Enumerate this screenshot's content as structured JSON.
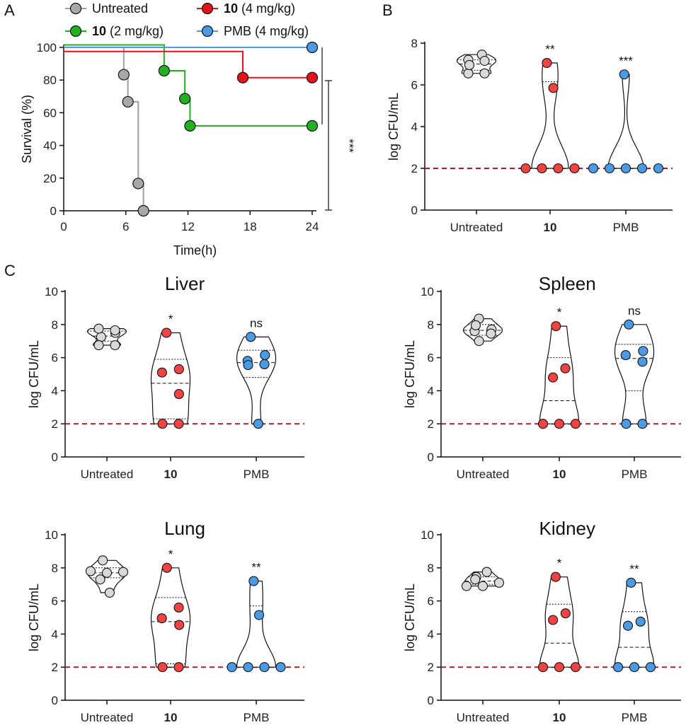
{
  "colors": {
    "untreated": "#a0a0a0",
    "untreated_fill": "#d9d9d9",
    "c10_2": "#22b11e",
    "c10_4": "#e1141b",
    "c10_fill": "#ee4444",
    "pmb": "#4a9be3",
    "pmb_fill": "#4a9be3",
    "lod": "#b01c22"
  },
  "chart_data": [
    {
      "panel": "A",
      "type": "line",
      "subtype": "kaplan-meier",
      "title": "",
      "xlabel": "Time(h)",
      "ylabel": "Survival (%)",
      "xlim": [
        0,
        24
      ],
      "ylim": [
        0,
        100
      ],
      "xticks": [
        0,
        6,
        12,
        18,
        24
      ],
      "yticks": [
        0,
        20,
        40,
        60,
        80,
        100
      ],
      "legend": [
        {
          "key": "untreated",
          "bold": "",
          "text": "Untreated"
        },
        {
          "key": "c10_4",
          "bold": "10",
          "text": " (4 mg/kg)"
        },
        {
          "key": "c10_2",
          "bold": "10",
          "text": " (2 mg/kg)"
        },
        {
          "key": "pmb",
          "bold": "",
          "text": "PMB (4 mg/kg)"
        }
      ],
      "series": [
        {
          "name": "Untreated",
          "key": "untreated",
          "steps": [
            [
              0,
              100
            ],
            [
              5.8,
              100
            ],
            [
              5.8,
              83.3
            ],
            [
              6.2,
              83.3
            ],
            [
              6.2,
              66.7
            ],
            [
              7.2,
              66.7
            ],
            [
              7.2,
              16.7
            ],
            [
              7.7,
              16.7
            ],
            [
              7.7,
              0
            ]
          ],
          "markers": [
            [
              5.8,
              83.3
            ],
            [
              6.2,
              66.7
            ],
            [
              7.2,
              16.7
            ],
            [
              7.7,
              0
            ]
          ]
        },
        {
          "name": "10 (2 mg/kg)",
          "key": "c10_2",
          "steps": [
            [
              0,
              101.5
            ],
            [
              9.7,
              101.5
            ],
            [
              9.7,
              85.7
            ],
            [
              11.7,
              85.7
            ],
            [
              11.7,
              68.6
            ],
            [
              12.2,
              68.6
            ],
            [
              12.2,
              52
            ],
            [
              24,
              52
            ]
          ],
          "markers": [
            [
              9.7,
              85.7
            ],
            [
              11.7,
              68.6
            ],
            [
              12.2,
              52
            ],
            [
              24,
              52
            ]
          ]
        },
        {
          "name": "10 (4 mg/kg)",
          "key": "c10_4",
          "steps": [
            [
              0,
              97.5
            ],
            [
              17.3,
              97.5
            ],
            [
              17.3,
              81.5
            ],
            [
              24,
              81.5
            ]
          ],
          "markers": [
            [
              17.3,
              81.5
            ],
            [
              24,
              81.5
            ]
          ]
        },
        {
          "name": "PMB (4 mg/kg)",
          "key": "pmb",
          "steps": [
            [
              0,
              100
            ],
            [
              24,
              100
            ]
          ],
          "markers": [
            [
              24,
              100
            ]
          ]
        }
      ],
      "significance": "***"
    },
    {
      "panel": "B",
      "type": "scatter",
      "subtype": "violin",
      "title": "",
      "xlabel": "",
      "ylabel": "log CFU/mL",
      "ylim": [
        0,
        8
      ],
      "yticks": [
        0,
        2,
        4,
        6,
        8
      ],
      "lod": 2,
      "groups": [
        {
          "label": "Untreated",
          "bold": false,
          "key": "untreated",
          "sig": "",
          "points": [
            7.2,
            7.45,
            6.55,
            6.55,
            6.95,
            7.15
          ],
          "min": 6.55,
          "max": 7.45,
          "median": 7.0,
          "q1": 6.7,
          "q3": 7.2
        },
        {
          "label": "10",
          "bold": true,
          "key": "c10",
          "sig": "**",
          "points": [
            7.05,
            5.85,
            2,
            2,
            2,
            2
          ],
          "min": 2,
          "max": 7.05,
          "median": 2,
          "q1": 2,
          "q3": 6.15
        },
        {
          "label": "PMB",
          "bold": false,
          "key": "pmb",
          "sig": "***",
          "points": [
            6.5,
            2,
            2,
            2,
            2,
            2
          ],
          "min": 2,
          "max": 6.5,
          "median": 2,
          "q1": 2,
          "q3": 2
        }
      ]
    },
    {
      "panel": "C",
      "organ": "Liver",
      "type": "scatter",
      "subtype": "violin",
      "title": "Liver",
      "xlabel": "",
      "ylabel": "log CFU/mL",
      "ylim": [
        0,
        10
      ],
      "yticks": [
        0,
        2,
        4,
        6,
        8,
        10
      ],
      "lod": 2,
      "groups": [
        {
          "label": "Untreated",
          "bold": false,
          "key": "untreated",
          "sig": "",
          "points": [
            7.25,
            7.75,
            6.75,
            7.5,
            6.75,
            7.65
          ],
          "min": 6.75,
          "max": 7.75,
          "median": 7.3,
          "q1": 7.0,
          "q3": 7.6
        },
        {
          "label": "10",
          "bold": true,
          "key": "c10",
          "sig": "*",
          "points": [
            7.5,
            5.3,
            5.1,
            3.8,
            2,
            2
          ],
          "min": 2,
          "max": 7.5,
          "median": 4.45,
          "q1": 2.3,
          "q3": 5.9
        },
        {
          "label": "PMB",
          "bold": false,
          "key": "pmb",
          "sig": "ns",
          "points": [
            7.25,
            6.15,
            5.8,
            5.55,
            5.6,
            2
          ],
          "min": 2,
          "max": 7.25,
          "median": 5.7,
          "q1": 4.8,
          "q3": 6.45
        }
      ]
    },
    {
      "panel": "C",
      "organ": "Spleen",
      "type": "scatter",
      "subtype": "violin",
      "title": "Spleen",
      "xlabel": "",
      "ylabel": "log CFU/mL",
      "ylim": [
        0,
        10
      ],
      "yticks": [
        0,
        2,
        4,
        6,
        8,
        10
      ],
      "lod": 2,
      "groups": [
        {
          "label": "Untreated",
          "bold": false,
          "key": "untreated",
          "sig": "",
          "points": [
            8.35,
            7.7,
            7.0,
            7.6,
            7.95,
            7.45
          ],
          "min": 7.0,
          "max": 8.35,
          "median": 7.65,
          "q1": 7.35,
          "q3": 8.0
        },
        {
          "label": "10",
          "bold": true,
          "key": "c10",
          "sig": "*",
          "points": [
            7.9,
            5.35,
            4.8,
            2,
            2,
            2
          ],
          "min": 2,
          "max": 7.9,
          "median": 3.4,
          "q1": 2,
          "q3": 6.0
        },
        {
          "label": "PMB",
          "bold": false,
          "key": "pmb",
          "sig": "ns",
          "points": [
            8.0,
            6.4,
            6.15,
            5.75,
            2,
            2
          ],
          "min": 2,
          "max": 8.0,
          "median": 5.95,
          "q1": 4.0,
          "q3": 6.8
        }
      ]
    },
    {
      "panel": "C",
      "organ": "Lung",
      "type": "scatter",
      "subtype": "violin",
      "title": "Lung",
      "xlabel": "",
      "ylabel": "log CFU/mL",
      "ylim": [
        0,
        10
      ],
      "yticks": [
        0,
        2,
        4,
        6,
        8,
        10
      ],
      "lod": 2,
      "groups": [
        {
          "label": "Untreated",
          "bold": false,
          "key": "untreated",
          "sig": "",
          "points": [
            8.45,
            7.8,
            7.7,
            7.75,
            7.3,
            6.5
          ],
          "min": 6.5,
          "max": 8.45,
          "median": 7.7,
          "q1": 7.4,
          "q3": 8.0
        },
        {
          "label": "10",
          "bold": true,
          "key": "c10",
          "sig": "*",
          "points": [
            8.0,
            5.6,
            4.95,
            4.55,
            2,
            2
          ],
          "min": 2,
          "max": 8.0,
          "median": 4.75,
          "q1": 2.2,
          "q3": 6.2
        },
        {
          "label": "PMB",
          "bold": false,
          "key": "pmb",
          "sig": "**",
          "points": [
            7.2,
            5.15,
            2,
            2,
            2,
            2
          ],
          "min": 2,
          "max": 7.2,
          "median": 2,
          "q1": 2,
          "q3": 5.7
        }
      ]
    },
    {
      "panel": "C",
      "organ": "Kidney",
      "type": "scatter",
      "subtype": "violin",
      "title": "Kidney",
      "xlabel": "",
      "ylabel": "log CFU/mL",
      "ylim": [
        0,
        10
      ],
      "yticks": [
        0,
        2,
        4,
        6,
        8,
        10
      ],
      "lod": 2,
      "groups": [
        {
          "label": "Untreated",
          "bold": false,
          "key": "untreated",
          "sig": "",
          "points": [
            7.45,
            7.75,
            7.3,
            6.9,
            6.9,
            7.1
          ],
          "min": 6.9,
          "max": 7.75,
          "median": 7.2,
          "q1": 7.0,
          "q3": 7.45
        },
        {
          "label": "10",
          "bold": true,
          "key": "c10",
          "sig": "*",
          "points": [
            7.45,
            5.25,
            4.85,
            2,
            2,
            2
          ],
          "min": 2,
          "max": 7.45,
          "median": 3.45,
          "q1": 2,
          "q3": 5.8
        },
        {
          "label": "PMB",
          "bold": false,
          "key": "pmb",
          "sig": "**",
          "points": [
            7.1,
            4.75,
            4.5,
            2,
            2,
            2
          ],
          "min": 2,
          "max": 7.1,
          "median": 3.2,
          "q1": 2,
          "q3": 5.35
        }
      ]
    }
  ],
  "panel_letters": [
    "A",
    "B",
    "C"
  ]
}
